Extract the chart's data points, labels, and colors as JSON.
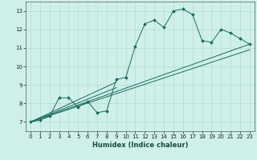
{
  "xlabel": "Humidex (Indice chaleur)",
  "background_color": "#cff0ea",
  "grid_color": "#b8ddd8",
  "line_color": "#1a6b5a",
  "xlim": [
    -0.5,
    23.5
  ],
  "ylim": [
    6.5,
    13.5
  ],
  "xticks": [
    0,
    1,
    2,
    3,
    4,
    5,
    6,
    7,
    8,
    9,
    10,
    11,
    12,
    13,
    14,
    15,
    16,
    17,
    18,
    19,
    20,
    21,
    22,
    23
  ],
  "yticks": [
    7,
    8,
    9,
    10,
    11,
    12,
    13
  ],
  "main_x": [
    0,
    1,
    2,
    3,
    4,
    5,
    6,
    7,
    8,
    9,
    10,
    11,
    12,
    13,
    14,
    15,
    16,
    17,
    18,
    19,
    20,
    21,
    22,
    23
  ],
  "main_y": [
    7.0,
    7.1,
    7.3,
    8.3,
    8.3,
    7.8,
    8.1,
    7.5,
    7.6,
    9.3,
    9.4,
    11.1,
    12.3,
    12.5,
    12.1,
    13.0,
    13.1,
    12.8,
    11.4,
    11.3,
    12.0,
    11.8,
    11.5,
    11.2
  ],
  "lines": [
    {
      "x": [
        0,
        23
      ],
      "y": [
        7.0,
        11.2
      ]
    },
    {
      "x": [
        0,
        23
      ],
      "y": [
        7.0,
        10.9
      ]
    },
    {
      "x": [
        0,
        9
      ],
      "y": [
        7.0,
        9.15
      ]
    },
    {
      "x": [
        0,
        9
      ],
      "y": [
        7.0,
        8.85
      ]
    }
  ]
}
